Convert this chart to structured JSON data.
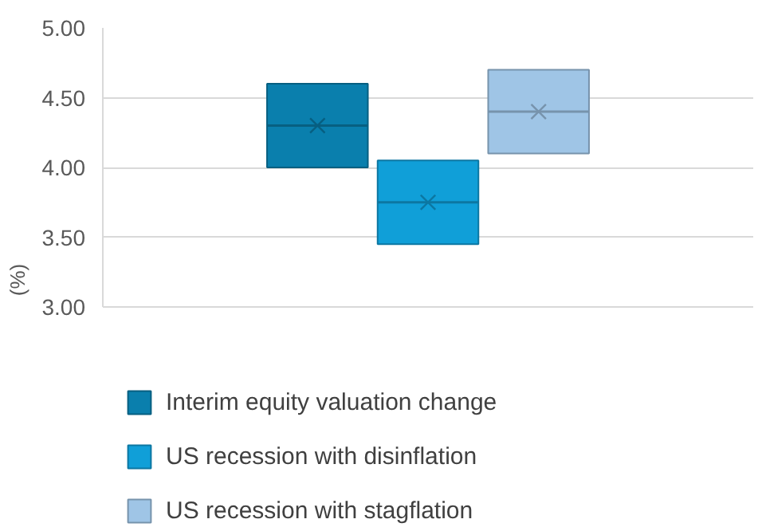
{
  "chart_data": {
    "type": "box",
    "categories": [
      null
    ],
    "ylabel": "(%)",
    "ylim": [
      3.0,
      5.0
    ],
    "yticks": [
      {
        "value": 3.0,
        "label": "3.00"
      },
      {
        "value": 3.5,
        "label": "3.50"
      },
      {
        "value": 4.0,
        "label": "4.00"
      },
      {
        "value": 4.5,
        "label": "4.50"
      },
      {
        "value": 5.0,
        "label": "5.00"
      }
    ],
    "grid": "y",
    "legend": "bottom",
    "series": [
      {
        "name": "Interim equity valuation change",
        "color": "#0a7fad",
        "boxes": [
          {
            "low": 4.0,
            "q1": 4.0,
            "median": 4.3,
            "q3": 4.6,
            "high": 4.6,
            "mean": 4.3
          }
        ]
      },
      {
        "name": "US recession with disinflation",
        "color": "#109fd8",
        "boxes": [
          {
            "low": 3.45,
            "q1": 3.45,
            "median": 3.75,
            "q3": 4.05,
            "high": 4.05,
            "mean": 3.75
          }
        ]
      },
      {
        "name": "US recession with stagflation",
        "color": "#9fc5e6",
        "boxes": [
          {
            "low": 4.1,
            "q1": 4.1,
            "median": 4.4,
            "q3": 4.7,
            "high": 4.7,
            "mean": 4.4
          }
        ]
      }
    ]
  }
}
